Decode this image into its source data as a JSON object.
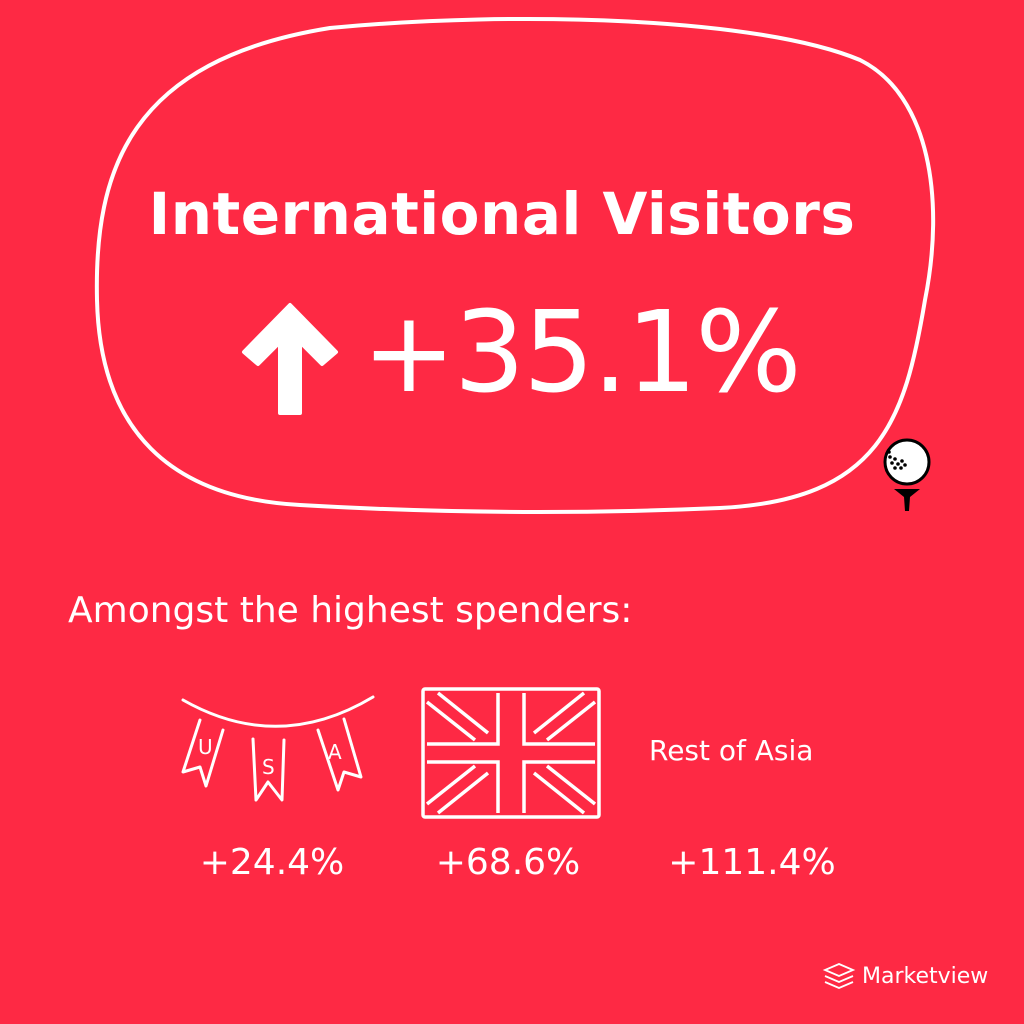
{
  "headline": {
    "title": "International Visitors",
    "direction_icon": "arrow-up-icon",
    "value": "+35.1%"
  },
  "subtitle": "Amongst the highest spenders:",
  "spenders": [
    {
      "icon": "usa-bunting-icon",
      "icon_letters": "USA",
      "value": "+24.4%"
    },
    {
      "icon": "uk-flag-icon",
      "value": "+68.6%"
    },
    {
      "label": "Rest of Asia",
      "value": "+111.4%"
    }
  ],
  "decoration": "golf-ball-on-tee-icon",
  "brand": {
    "name": "Marketview",
    "icon": "layers-logo-icon"
  },
  "colors": {
    "background": "#fe2944",
    "foreground": "#ffffff"
  }
}
